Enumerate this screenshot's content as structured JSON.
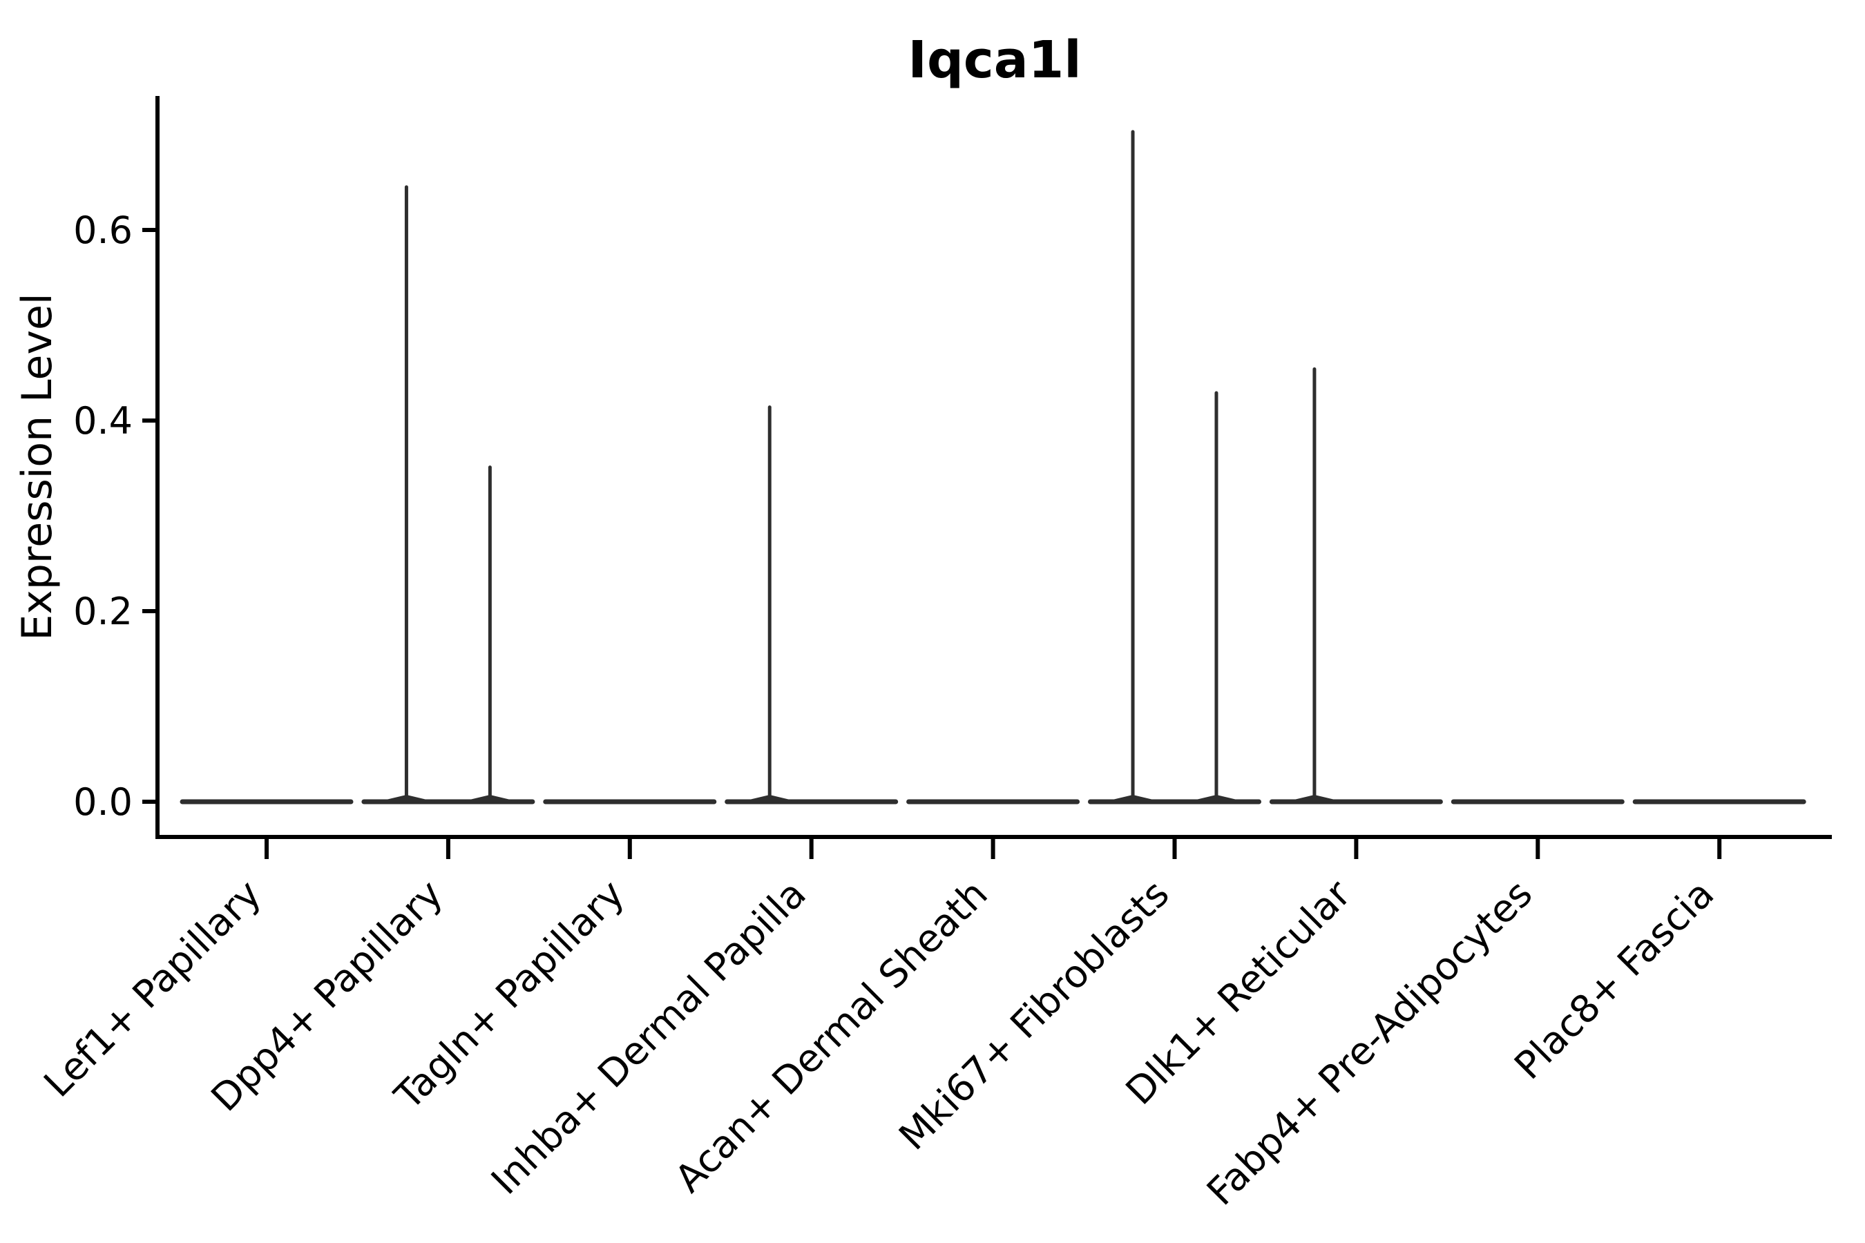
{
  "title": "Iqca1l",
  "ylabel": "Expression Level",
  "colors": {
    "background": "#ffffff",
    "axis": "#000000",
    "text": "#000000",
    "violin": "#2e2e2e"
  },
  "chart_data": {
    "type": "violin",
    "title": "Iqca1l",
    "xlabel": "",
    "ylabel": "Expression Level",
    "ylim": [
      -0.04,
      0.74
    ],
    "y_ticks": [
      0.0,
      0.2,
      0.4,
      0.6
    ],
    "y_tick_labels": [
      "0.0",
      "0.2",
      "0.4",
      "0.6"
    ],
    "grid": false,
    "legend": false,
    "categories": [
      "Lef1+ Papillary",
      "Dpp4+ Papillary",
      "Tagln+ Papillary",
      "Inhba+ Dermal Papilla",
      "Acan+ Dermal Sheath",
      "Mki67+ Fibroblasts",
      "Dlk1+ Reticular",
      "Fabp4+ Pre-Adipocytes",
      "Plac8+ Fascia"
    ],
    "violins": [
      {
        "category": "Lef1+ Papillary",
        "baseline_value": 0.0,
        "spikes": []
      },
      {
        "category": "Dpp4+ Papillary",
        "baseline_value": 0.0,
        "spikes": [
          {
            "dx": -0.23,
            "max": 0.645
          },
          {
            "dx": 0.23,
            "max": 0.351
          }
        ]
      },
      {
        "category": "Tagln+ Papillary",
        "baseline_value": 0.0,
        "spikes": []
      },
      {
        "category": "Inhba+ Dermal Papilla",
        "baseline_value": 0.0,
        "spikes": [
          {
            "dx": -0.23,
            "max": 0.414
          }
        ]
      },
      {
        "category": "Acan+ Dermal Sheath",
        "baseline_value": 0.0,
        "spikes": []
      },
      {
        "category": "Mki67+ Fibroblasts",
        "baseline_value": 0.0,
        "spikes": [
          {
            "dx": -0.23,
            "max": 0.703
          },
          {
            "dx": 0.23,
            "max": 0.429
          }
        ]
      },
      {
        "category": "Dlk1+ Reticular",
        "baseline_value": 0.0,
        "spikes": [
          {
            "dx": -0.23,
            "max": 0.454
          }
        ]
      },
      {
        "category": "Fabp4+ Pre-Adipocytes",
        "baseline_value": 0.0,
        "spikes": []
      },
      {
        "category": "Plac8+ Fascia",
        "baseline_value": 0.0,
        "spikes": []
      }
    ],
    "description": "Violin plot of Iqca1l expression per cluster; nearly all cells at 0 (flat wide bases) with thin density spikes reaching the maximum expressing cell in Dpp4+ Papillary, Inhba+ Dermal Papilla, Mki67+ Fibroblasts and Dlk1+ Reticular clusters."
  }
}
